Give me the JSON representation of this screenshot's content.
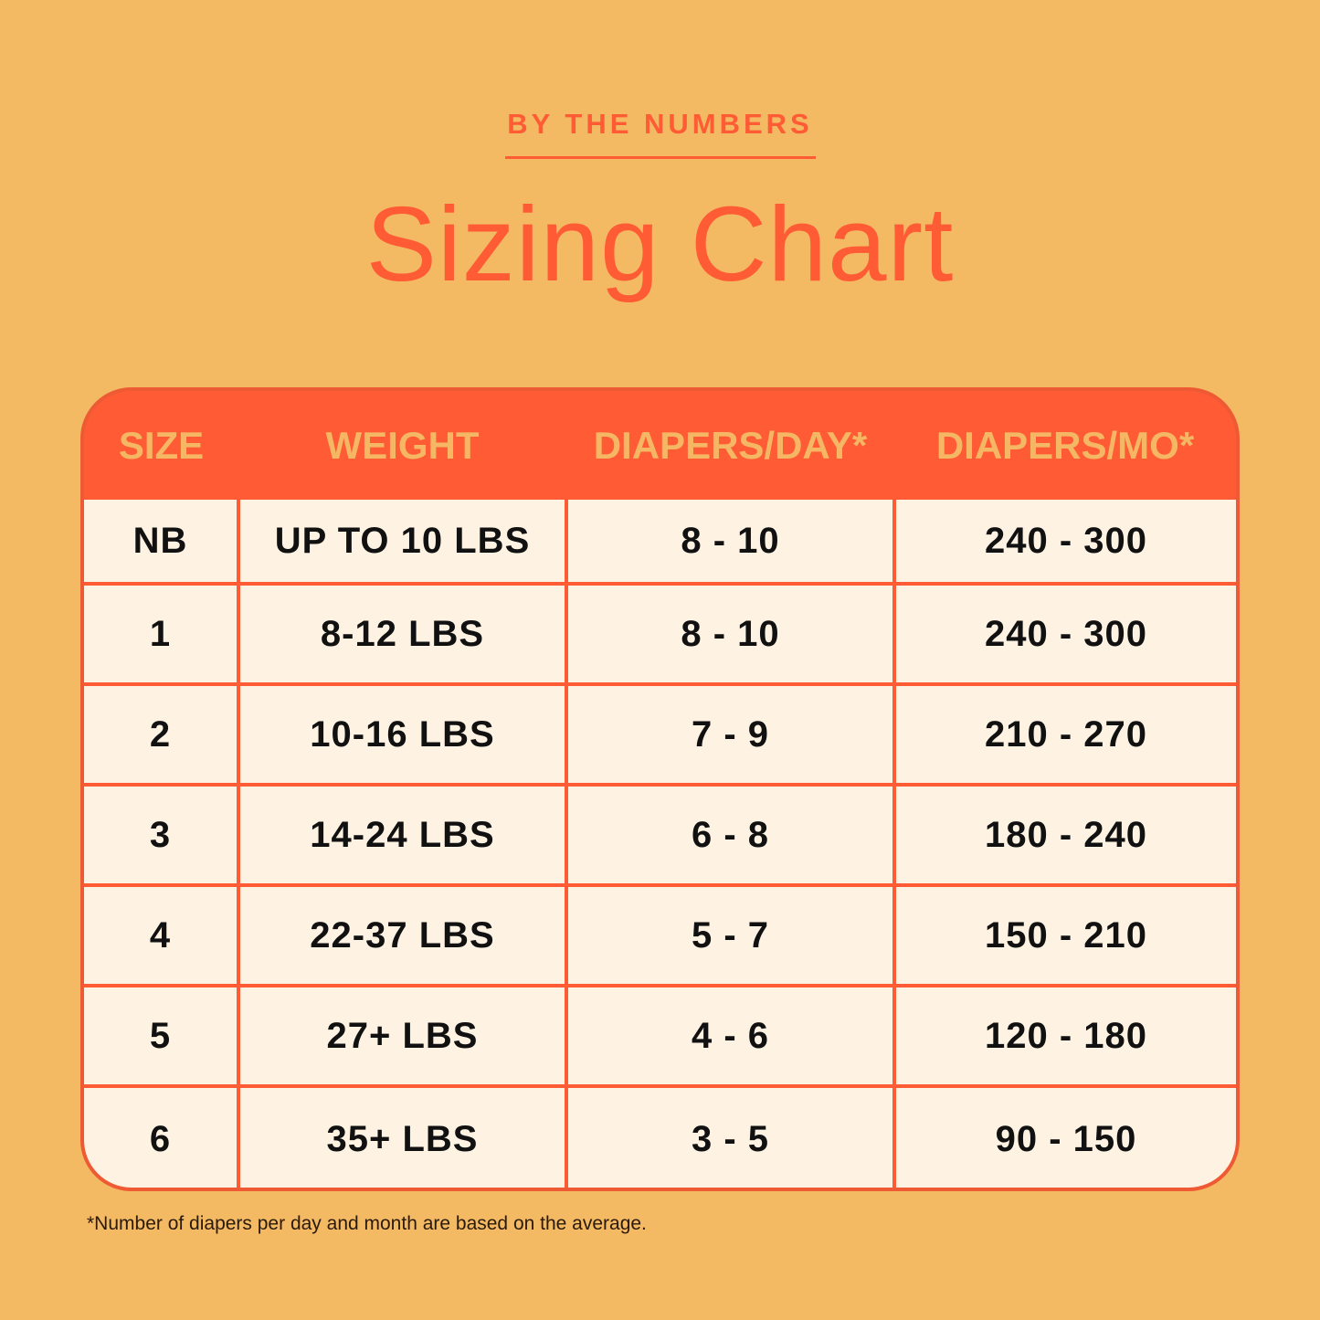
{
  "eyebrow": "BY THE NUMBERS",
  "title": "Sizing Chart",
  "colors": {
    "background": "#F4B963",
    "accent": "#FF5C35",
    "cell": "#FEF3E2",
    "header_text": "#F5B763"
  },
  "table": {
    "headers": [
      "SIZE",
      "WEIGHT",
      "DIAPERS/DAY*",
      "DIAPERS/MO*"
    ],
    "rows": [
      [
        "NB",
        "UP TO 10 LBS",
        "8 - 10",
        "240 - 300"
      ],
      [
        "1",
        "8-12 LBS",
        "8 - 10",
        "240 - 300"
      ],
      [
        "2",
        "10-16 LBS",
        "7 - 9",
        "210 - 270"
      ],
      [
        "3",
        "14-24 LBS",
        "6 - 8",
        "180 - 240"
      ],
      [
        "4",
        "22-37 LBS",
        "5 - 7",
        "150 - 210"
      ],
      [
        "5",
        "27+ LBS",
        "4 - 6",
        "120 - 180"
      ],
      [
        "6",
        "35+ LBS",
        "3 - 5",
        "90 - 150"
      ]
    ]
  },
  "footnote": "*Number of diapers per day and month are based on the average."
}
